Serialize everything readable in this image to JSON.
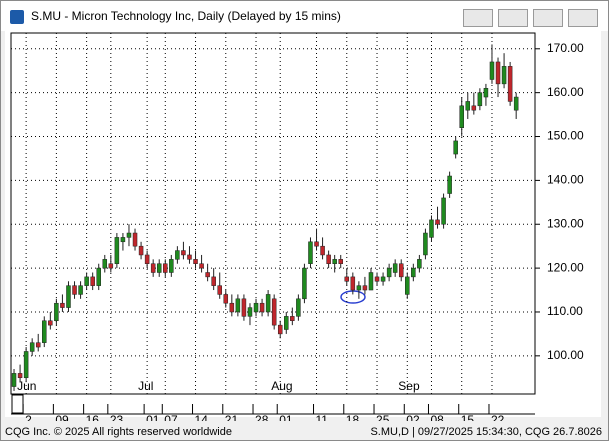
{
  "window": {
    "title": "S.MU - Micron Technology Inc, Daily (Delayed by 15 mins)"
  },
  "footer": {
    "left": "CQG Inc. © 2025 All rights reserved worldwide",
    "right": "S.MU,D | 09/27/2025 15:34:30, CQG 26.7.8026"
  },
  "chart_data": {
    "type": "candlestick",
    "categories": [
      null,
      null,
      "2",
      null,
      null,
      null,
      null,
      "09",
      null,
      null,
      null,
      null,
      "16",
      null,
      null,
      null,
      "23",
      null,
      null,
      null,
      null,
      null,
      "01",
      null,
      null,
      "07",
      null,
      null,
      null,
      null,
      "14",
      null,
      null,
      null,
      null,
      "21",
      null,
      null,
      null,
      null,
      "28",
      null,
      null,
      null,
      "01",
      null,
      null,
      null,
      null,
      null,
      "11",
      null,
      null,
      null,
      null,
      "18",
      null,
      null,
      null,
      null,
      "25",
      null,
      null,
      null,
      null,
      "02",
      null,
      null,
      null,
      "08",
      null,
      null,
      null,
      null,
      "15",
      null,
      null,
      null,
      null,
      "22",
      null,
      null,
      null,
      null
    ],
    "month_labels": [
      null,
      null,
      "Jun",
      null,
      null,
      null,
      null,
      null,
      null,
      null,
      null,
      null,
      null,
      null,
      null,
      null,
      null,
      null,
      null,
      null,
      null,
      null,
      "Jul",
      null,
      null,
      null,
      null,
      null,
      null,
      null,
      null,
      null,
      null,
      null,
      null,
      null,
      null,
      null,
      null,
      null,
      null,
      null,
      null,
      null,
      "Aug",
      null,
      null,
      null,
      null,
      null,
      null,
      null,
      null,
      null,
      null,
      null,
      null,
      null,
      null,
      null,
      null,
      null,
      null,
      null,
      null,
      "Sep",
      null,
      null,
      null,
      null,
      null,
      null,
      null,
      null,
      null,
      null,
      null,
      null,
      null,
      null,
      null,
      null,
      null,
      null
    ],
    "open": [
      93,
      96,
      95,
      101,
      103,
      103,
      108,
      108,
      112,
      111,
      116,
      114,
      116,
      118,
      116,
      120,
      121,
      121,
      126,
      127,
      128,
      125,
      123,
      121,
      119,
      121,
      119,
      122,
      124,
      123,
      122,
      121,
      119,
      118,
      116,
      114,
      112,
      110,
      113,
      109,
      110,
      112,
      110,
      113,
      107,
      106,
      109,
      109,
      113,
      121,
      126,
      125,
      123,
      121,
      122,
      118,
      118,
      115,
      116,
      115,
      118,
      117,
      118,
      119,
      121,
      114,
      118,
      120,
      123,
      127,
      131,
      130,
      137,
      146,
      152,
      156,
      157,
      157,
      159,
      163,
      167,
      162,
      166,
      156
    ],
    "high": [
      97,
      98,
      102,
      104,
      105,
      109,
      110,
      113,
      114,
      117,
      117,
      117,
      119,
      119,
      121,
      123,
      123,
      128,
      128,
      130,
      129,
      126,
      124,
      122,
      122,
      122,
      123,
      125,
      126,
      125,
      124,
      123,
      121,
      120,
      119,
      115,
      114,
      114,
      114,
      112,
      113,
      113,
      115,
      114,
      108,
      110,
      111,
      114,
      121,
      127,
      129,
      127,
      124,
      123,
      123,
      120,
      119,
      117,
      118,
      120,
      119,
      119,
      121,
      122,
      122,
      119,
      121,
      123,
      129,
      132,
      134,
      137,
      142,
      150,
      159,
      160,
      160,
      161,
      162,
      171,
      168,
      169,
      167,
      160
    ],
    "low": [
      92,
      94,
      94,
      100,
      101,
      102,
      106,
      107,
      110,
      110,
      113,
      113,
      115,
      115,
      115,
      119,
      119,
      120,
      124,
      125,
      124,
      122,
      120,
      118,
      118,
      118,
      118,
      121,
      122,
      121,
      120,
      119,
      117,
      115,
      113,
      111,
      109,
      109,
      108,
      107,
      109,
      109,
      109,
      106,
      104,
      105,
      107,
      108,
      112,
      120,
      124,
      122,
      120,
      119,
      120,
      116,
      114,
      113,
      114,
      115,
      116,
      116,
      117,
      118,
      117,
      113,
      117,
      119,
      122,
      126,
      129,
      129,
      136,
      145,
      150,
      154,
      155,
      156,
      157,
      162,
      159,
      161,
      157,
      154
    ],
    "close": [
      96,
      95,
      101,
      103,
      102,
      108,
      107,
      112,
      111,
      116,
      114,
      116,
      118,
      116,
      120,
      122,
      120,
      127,
      127,
      128,
      125,
      123,
      121,
      119,
      121,
      119,
      122,
      124,
      123,
      122,
      121,
      120,
      118,
      116,
      114,
      112,
      110,
      113,
      109,
      111,
      112,
      110,
      114,
      107,
      105,
      109,
      108,
      113,
      120,
      126,
      125,
      123,
      121,
      122,
      121,
      117,
      115,
      116,
      115,
      119,
      117,
      118,
      120,
      121,
      118,
      118,
      120,
      122,
      128,
      131,
      130,
      136,
      141,
      149,
      157,
      158,
      156,
      160,
      161,
      167,
      162,
      166,
      158,
      159
    ],
    "up_color": "#1f8a1f",
    "down_color": "#c0262c",
    "wick_color": "#202020",
    "ylim": [
      91.3,
      173.6
    ],
    "yticks": [
      {
        "value": 100,
        "label": "100.00"
      },
      {
        "value": 110,
        "label": "110.00"
      },
      {
        "value": 120,
        "label": "120.00"
      },
      {
        "value": 130,
        "label": "130.00"
      },
      {
        "value": 140,
        "label": "140.00"
      },
      {
        "value": 150,
        "label": "150.00"
      },
      {
        "value": 160,
        "label": "160.00"
      },
      {
        "value": 170,
        "label": "170.00"
      }
    ],
    "grid": true
  }
}
